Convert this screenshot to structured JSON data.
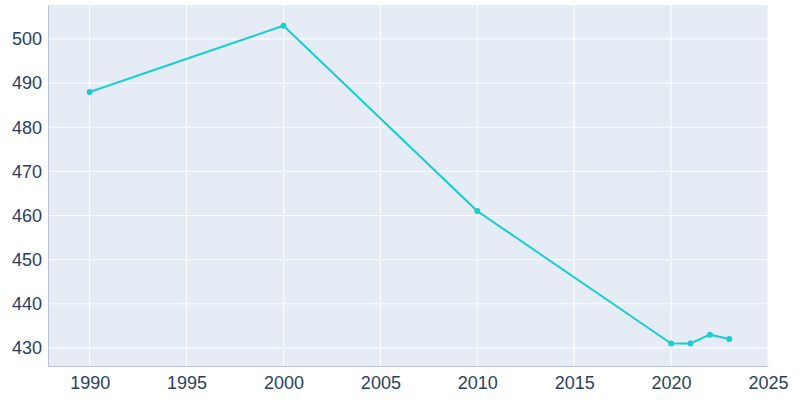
{
  "chart_data": {
    "type": "line",
    "x": [
      1990,
      2000,
      2010,
      2020,
      2021,
      2022,
      2023
    ],
    "values": [
      488,
      503,
      461,
      431,
      431,
      433,
      432
    ],
    "color": "#1ccfcf",
    "marker": "circle",
    "xlim": [
      1987.85,
      2025
    ],
    "xticks": [
      1990,
      1995,
      2000,
      2005,
      2010,
      2015,
      2020,
      2025
    ],
    "ylim": [
      425.9,
      507.7
    ],
    "yticks": [
      430,
      440,
      450,
      460,
      470,
      480,
      490,
      500
    ],
    "grid": true
  }
}
